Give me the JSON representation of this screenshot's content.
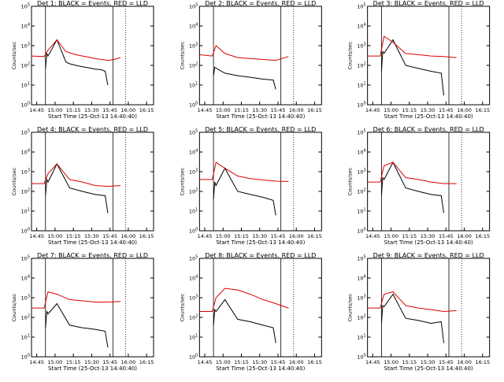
{
  "figure": {
    "title_template": "Det {n} BLACK = Events, RED = LLD",
    "xlabel": "Start Time (25-Oct-13 14:40:40)",
    "ylabel": "Counts/sec",
    "x_ticks": [
      "14:45",
      "15:00",
      "15:15",
      "15:30",
      "15:45",
      "16:00",
      "16:15"
    ],
    "y_tick_exponents": [
      0,
      1,
      2,
      3,
      4,
      5
    ],
    "colors": {
      "events": "#000000",
      "lld": "#dd0000",
      "axes": "#000000"
    }
  },
  "chart_data": [
    {
      "type": "line",
      "detector": 1,
      "title": "Det 1: BLACK = Events, RED = LLD",
      "x_unit": "minutes after 14:40:40",
      "y_scale": "log",
      "ylim": [
        1,
        100000
      ],
      "series": [
        {
          "name": "Events",
          "x": [
            11,
            12,
            13,
            20,
            27,
            30,
            35,
            40,
            45,
            50,
            55,
            58,
            60
          ],
          "y": [
            70,
            400,
            300,
            2000,
            150,
            120,
            100,
            85,
            75,
            65,
            60,
            50,
            10
          ]
        },
        {
          "name": "LLD",
          "x": [
            0,
            10,
            13,
            20,
            27,
            35,
            40,
            45,
            50,
            55,
            60,
            65,
            70
          ],
          "y": [
            300,
            280,
            600,
            2000,
            500,
            350,
            300,
            260,
            220,
            200,
            180,
            200,
            250
          ]
        }
      ]
    },
    {
      "type": "line",
      "detector": 2,
      "title": "Det 2: BLACK = Events, RED = LLD",
      "x_unit": "minutes after 14:40:40",
      "y_scale": "log",
      "ylim": [
        1,
        100000
      ],
      "series": [
        {
          "name": "Events",
          "x": [
            11,
            12,
            15,
            20,
            30,
            40,
            50,
            58,
            60
          ],
          "y": [
            30,
            80,
            60,
            40,
            30,
            25,
            20,
            18,
            6
          ]
        },
        {
          "name": "LLD",
          "x": [
            0,
            10,
            13,
            20,
            30,
            40,
            50,
            60,
            70
          ],
          "y": [
            350,
            300,
            1000,
            400,
            250,
            220,
            200,
            180,
            280
          ]
        }
      ]
    },
    {
      "type": "line",
      "detector": 3,
      "title": "Det 3: BLACK = Events, RED = LLD",
      "x_unit": "minutes after 14:40:40",
      "y_scale": "log",
      "ylim": [
        1,
        100000
      ],
      "series": [
        {
          "name": "Events",
          "x": [
            11,
            12,
            13,
            20,
            30,
            40,
            50,
            58,
            60
          ],
          "y": [
            50,
            500,
            400,
            2000,
            100,
            70,
            50,
            40,
            3
          ]
        },
        {
          "name": "LLD",
          "x": [
            0,
            10,
            13,
            20,
            30,
            40,
            50,
            60,
            70
          ],
          "y": [
            300,
            300,
            3000,
            1500,
            400,
            350,
            300,
            280,
            250
          ]
        }
      ]
    },
    {
      "type": "line",
      "detector": 4,
      "title": "Det 4: BLACK = Events, RED = LLD",
      "x_unit": "minutes after 14:40:40",
      "y_scale": "log",
      "ylim": [
        1,
        100000
      ],
      "series": [
        {
          "name": "Events",
          "x": [
            11,
            12,
            13,
            20,
            30,
            40,
            50,
            58,
            60
          ],
          "y": [
            60,
            400,
            300,
            2500,
            150,
            100,
            70,
            60,
            8
          ]
        },
        {
          "name": "LLD",
          "x": [
            0,
            10,
            13,
            20,
            30,
            40,
            50,
            60,
            70
          ],
          "y": [
            250,
            250,
            800,
            2500,
            400,
            300,
            200,
            180,
            200
          ]
        }
      ]
    },
    {
      "type": "line",
      "detector": 5,
      "title": "Det 5: BLACK = Events, RED = LLD",
      "x_unit": "minutes after 14:40:40",
      "y_scale": "log",
      "ylim": [
        1,
        100000
      ],
      "series": [
        {
          "name": "Events",
          "x": [
            11,
            12,
            13,
            20,
            30,
            40,
            50,
            58,
            60
          ],
          "y": [
            40,
            300,
            200,
            1500,
            100,
            70,
            50,
            35,
            6
          ]
        },
        {
          "name": "LLD",
          "x": [
            0,
            10,
            13,
            20,
            30,
            40,
            50,
            60,
            70
          ],
          "y": [
            400,
            400,
            3000,
            1500,
            600,
            450,
            380,
            330,
            320
          ]
        }
      ]
    },
    {
      "type": "line",
      "detector": 6,
      "title": "Det 6: BLACK = Events, RED = LLD",
      "x_unit": "minutes after 14:40:40",
      "y_scale": "log",
      "ylim": [
        1,
        100000
      ],
      "series": [
        {
          "name": "Events",
          "x": [
            11,
            12,
            13,
            20,
            30,
            40,
            50,
            58,
            60
          ],
          "y": [
            60,
            500,
            400,
            3000,
            150,
            100,
            70,
            60,
            8
          ]
        },
        {
          "name": "LLD",
          "x": [
            0,
            10,
            13,
            20,
            30,
            40,
            50,
            60,
            70
          ],
          "y": [
            300,
            300,
            2000,
            3000,
            500,
            400,
            300,
            250,
            250
          ]
        }
      ]
    },
    {
      "type": "line",
      "detector": 7,
      "title": "Det 7: BLACK = Events, RED = LLD",
      "x_unit": "minutes after 14:40:40",
      "y_scale": "log",
      "ylim": [
        1,
        100000
      ],
      "series": [
        {
          "name": "Events",
          "x": [
            11,
            12,
            13,
            20,
            30,
            40,
            50,
            58,
            60
          ],
          "y": [
            30,
            200,
            150,
            500,
            40,
            30,
            25,
            20,
            3
          ]
        },
        {
          "name": "LLD",
          "x": [
            0,
            10,
            13,
            20,
            30,
            40,
            50,
            60,
            70
          ],
          "y": [
            300,
            300,
            2000,
            1500,
            800,
            700,
            600,
            600,
            650
          ]
        }
      ]
    },
    {
      "type": "line",
      "detector": 8,
      "title": "Det 8: BLACK = Events, RED = LLD",
      "x_unit": "minutes after 14:40:40",
      "y_scale": "log",
      "ylim": [
        1,
        100000
      ],
      "series": [
        {
          "name": "Events",
          "x": [
            11,
            12,
            13,
            20,
            30,
            40,
            50,
            58,
            60
          ],
          "y": [
            40,
            250,
            200,
            800,
            80,
            60,
            40,
            30,
            5
          ]
        },
        {
          "name": "LLD",
          "x": [
            0,
            10,
            13,
            20,
            30,
            40,
            50,
            60,
            70
          ],
          "y": [
            200,
            200,
            1000,
            3000,
            2500,
            1500,
            800,
            500,
            300
          ]
        }
      ]
    },
    {
      "type": "line",
      "detector": 9,
      "title": "Det 9: BLACK = Events, RED = LLD",
      "x_unit": "minutes after 14:40:40",
      "y_scale": "log",
      "ylim": [
        1,
        100000
      ],
      "series": [
        {
          "name": "Events",
          "x": [
            11,
            12,
            13,
            20,
            30,
            40,
            50,
            58,
            60
          ],
          "y": [
            50,
            400,
            350,
            1500,
            90,
            70,
            50,
            60,
            5
          ]
        },
        {
          "name": "LLD",
          "x": [
            0,
            10,
            13,
            20,
            30,
            40,
            50,
            60,
            70
          ],
          "y": [
            300,
            300,
            1500,
            2000,
            400,
            300,
            250,
            200,
            220
          ]
        }
      ]
    }
  ]
}
